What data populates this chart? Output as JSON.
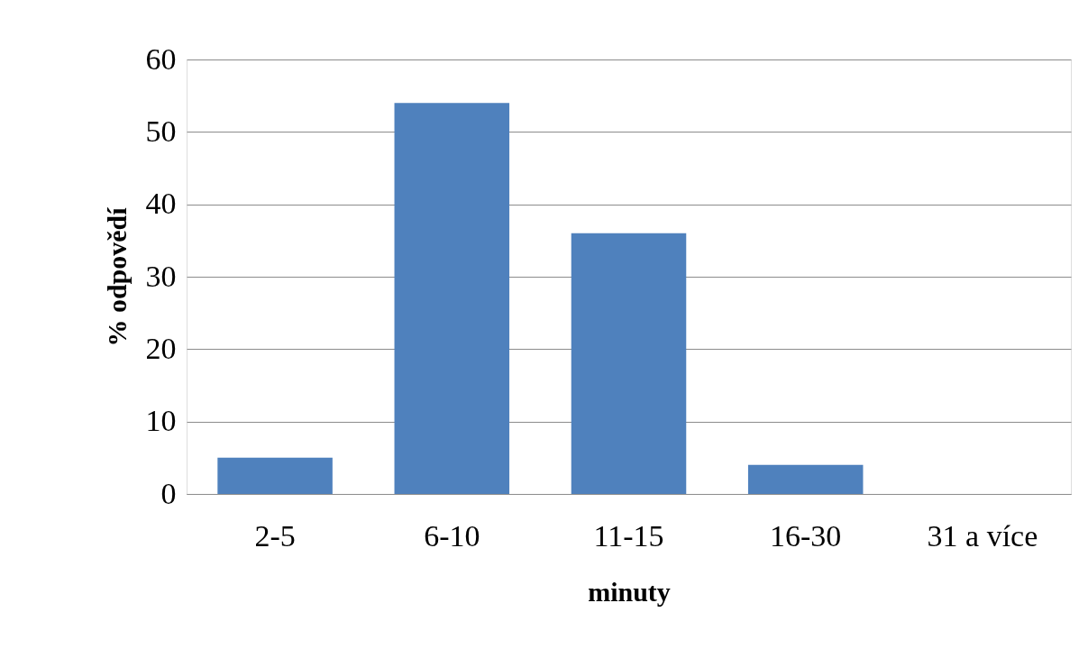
{
  "chart_data": {
    "type": "bar",
    "xlabel": "minuty",
    "ylabel": "% odpovědí",
    "categories": [
      "2-5",
      "6-10",
      "11-15",
      "16-30",
      "31 a více"
    ],
    "values": [
      5,
      54,
      36,
      4,
      0
    ],
    "color": "#4f81bd",
    "ylim": [
      0,
      60
    ],
    "yticks": [
      0,
      10,
      20,
      30,
      40,
      50,
      60
    ],
    "grid": "y"
  }
}
